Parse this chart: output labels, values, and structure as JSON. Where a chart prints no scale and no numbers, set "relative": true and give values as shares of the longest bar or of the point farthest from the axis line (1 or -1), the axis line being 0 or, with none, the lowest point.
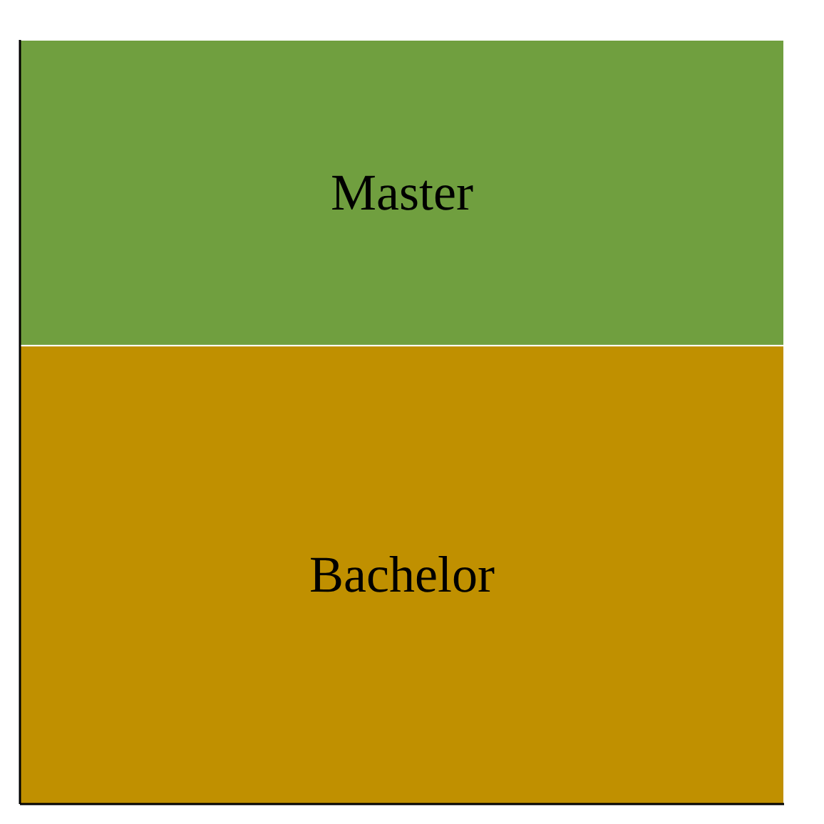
{
  "chart_data": {
    "type": "bar",
    "stacked": true,
    "relative": true,
    "categories": [
      null
    ],
    "series": [
      {
        "name": "Bachelor",
        "color": "#c09000",
        "values": [
          0.6
        ]
      },
      {
        "name": "Master",
        "color": "#709f3f",
        "values": [
          0.4
        ]
      }
    ]
  }
}
